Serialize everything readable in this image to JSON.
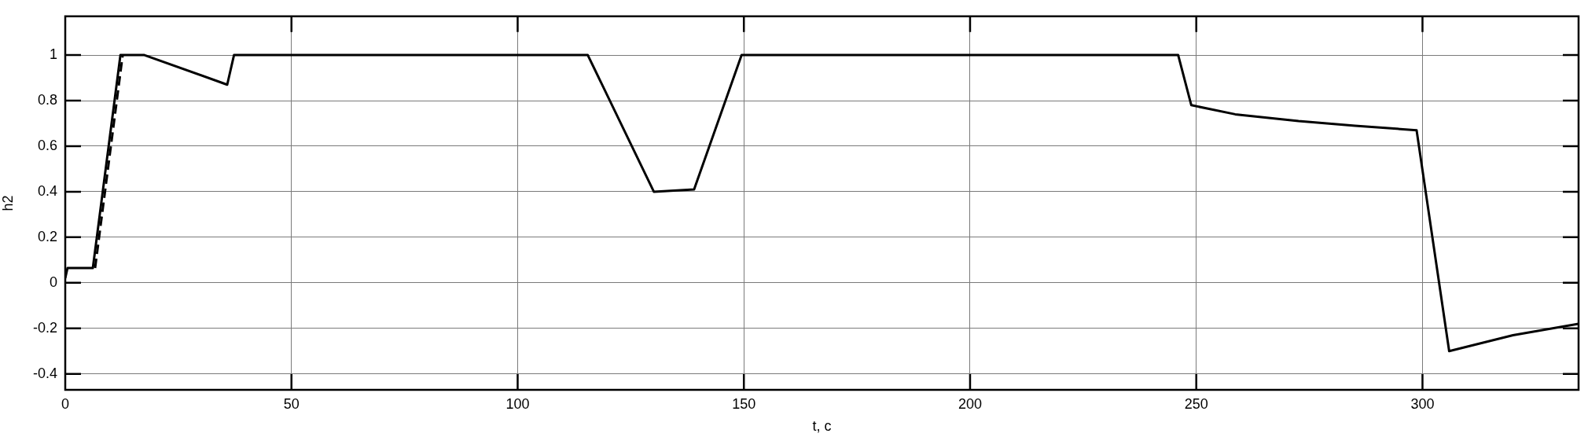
{
  "chart_data": {
    "type": "line",
    "xlabel": "t, с",
    "ylabel": "h2",
    "xlim": [
      0,
      334.5
    ],
    "xticks": [
      0,
      50,
      100,
      150,
      200,
      250,
      300
    ],
    "ylim": [
      -0.47,
      1.17
    ],
    "yticks": [
      -0.4,
      -0.2,
      0,
      0.2,
      0.4,
      0.6,
      0.8,
      1
    ],
    "grid": true,
    "marker": "none",
    "series": [
      {
        "color": "#000000",
        "line_style": "solid",
        "x": [
          0,
          0.5,
          6.1,
          12.2,
          17.5,
          35.8,
          37.3,
          115.5,
          130.1,
          139,
          149.5,
          246,
          248.9,
          258.6,
          272.6,
          285.1,
          298.7,
          305.9,
          320,
          334.5
        ],
        "values": [
          0.02,
          0.065,
          0.065,
          1,
          1,
          0.87,
          1,
          1,
          0.4,
          0.41,
          1,
          1,
          0.78,
          0.74,
          0.71,
          0.69,
          0.67,
          -0.3,
          -0.23,
          -0.18
        ]
      },
      {
        "color": "#000000",
        "line_style": "dashed",
        "x": [
          6.6,
          12.7
        ],
        "values": [
          0.065,
          1
        ]
      }
    ]
  }
}
